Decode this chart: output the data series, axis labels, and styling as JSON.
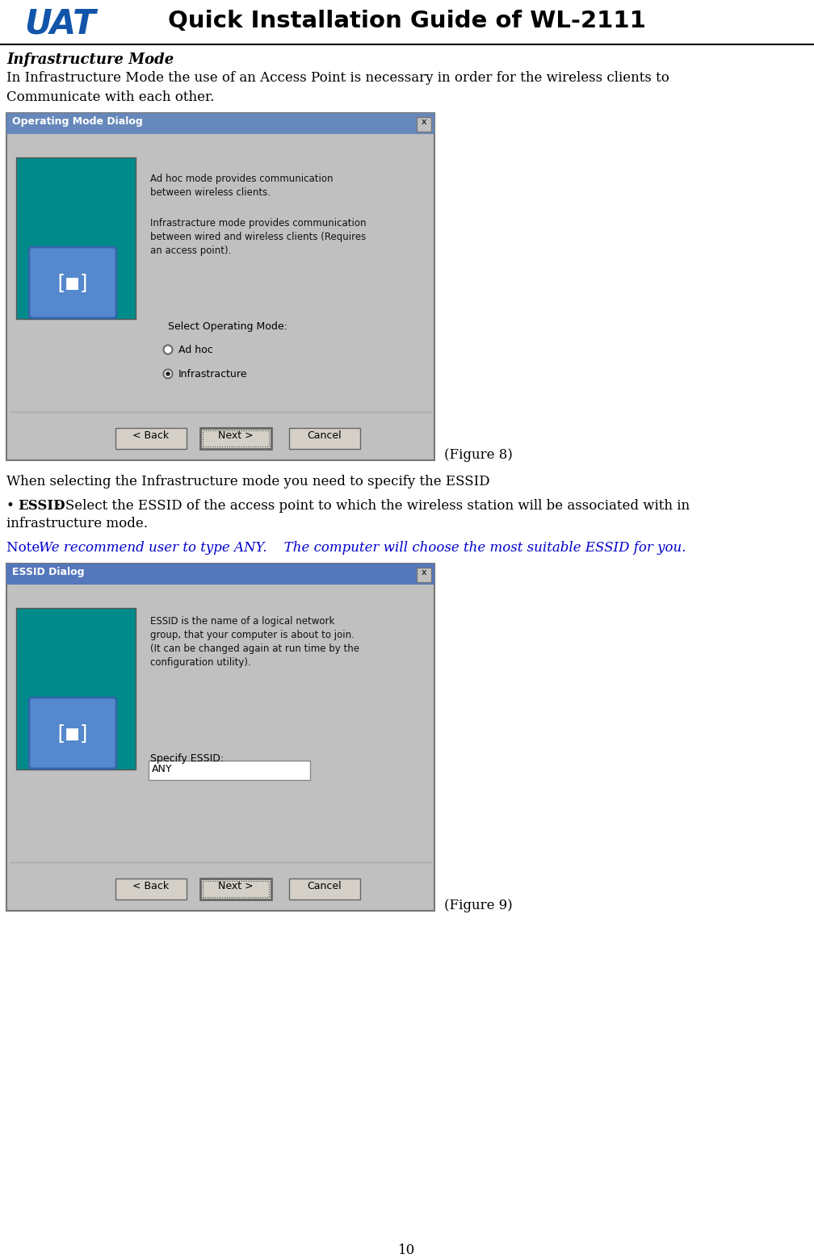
{
  "title": "Quick Installation Guide of WL-2111",
  "page_number": "10",
  "background_color": "#ffffff",
  "section_heading": "Infrastructure Mode",
  "para1_line1": "In Infrastructure Mode the use of an Access Point is necessary in order for the wireless clients to",
  "para1_line2": "Communicate with each other.",
  "figure8_label": "(Figure 8)",
  "figure9_label": "(Figure 9)",
  "text_after_fig8": "When selecting the Infrastructure mode you need to specify the ESSID",
  "bullet_bold": "ESSID",
  "bullet_rest": ": Select the ESSID of the access point to which the wireless station will be associated with in",
  "bullet_line2": "infrastructure mode.",
  "note_prefix": "Note: ",
  "note_italic": "We recommend user to type ANY.    The computer will choose the most suitable ESSID for you.",
  "note_color": "#0000cc",
  "dialog1_title": "Operating Mode Dialog",
  "dialog1_desc1": "Ad hoc mode provides communication\nbetween wireless clients.",
  "dialog1_desc2": "Infrastracture mode provides communication\nbetween wired and wireless clients (Requires\nan access point).",
  "dialog1_select": "Select Operating Mode:",
  "dialog1_opt1": "Ad hoc",
  "dialog1_opt2": "Infrastracture",
  "dialog2_title": "ESSID Dialog",
  "dialog2_desc": "ESSID is the name of a logical network\ngroup, that your computer is about to join.\n(It can be changed again at run time by the\nconfiguration utility).",
  "dialog2_specify": "Specify ESSID:",
  "dialog2_value": "ANY",
  "btn_back": "< Back",
  "btn_next": "Next >",
  "btn_cancel": "Cancel",
  "teal_color": "#008B8B",
  "dialog_bg": "#c0c0c0",
  "header_line_color": "#000000",
  "fig_width": 10.08,
  "fig_height": 15.58,
  "dpi": 100
}
